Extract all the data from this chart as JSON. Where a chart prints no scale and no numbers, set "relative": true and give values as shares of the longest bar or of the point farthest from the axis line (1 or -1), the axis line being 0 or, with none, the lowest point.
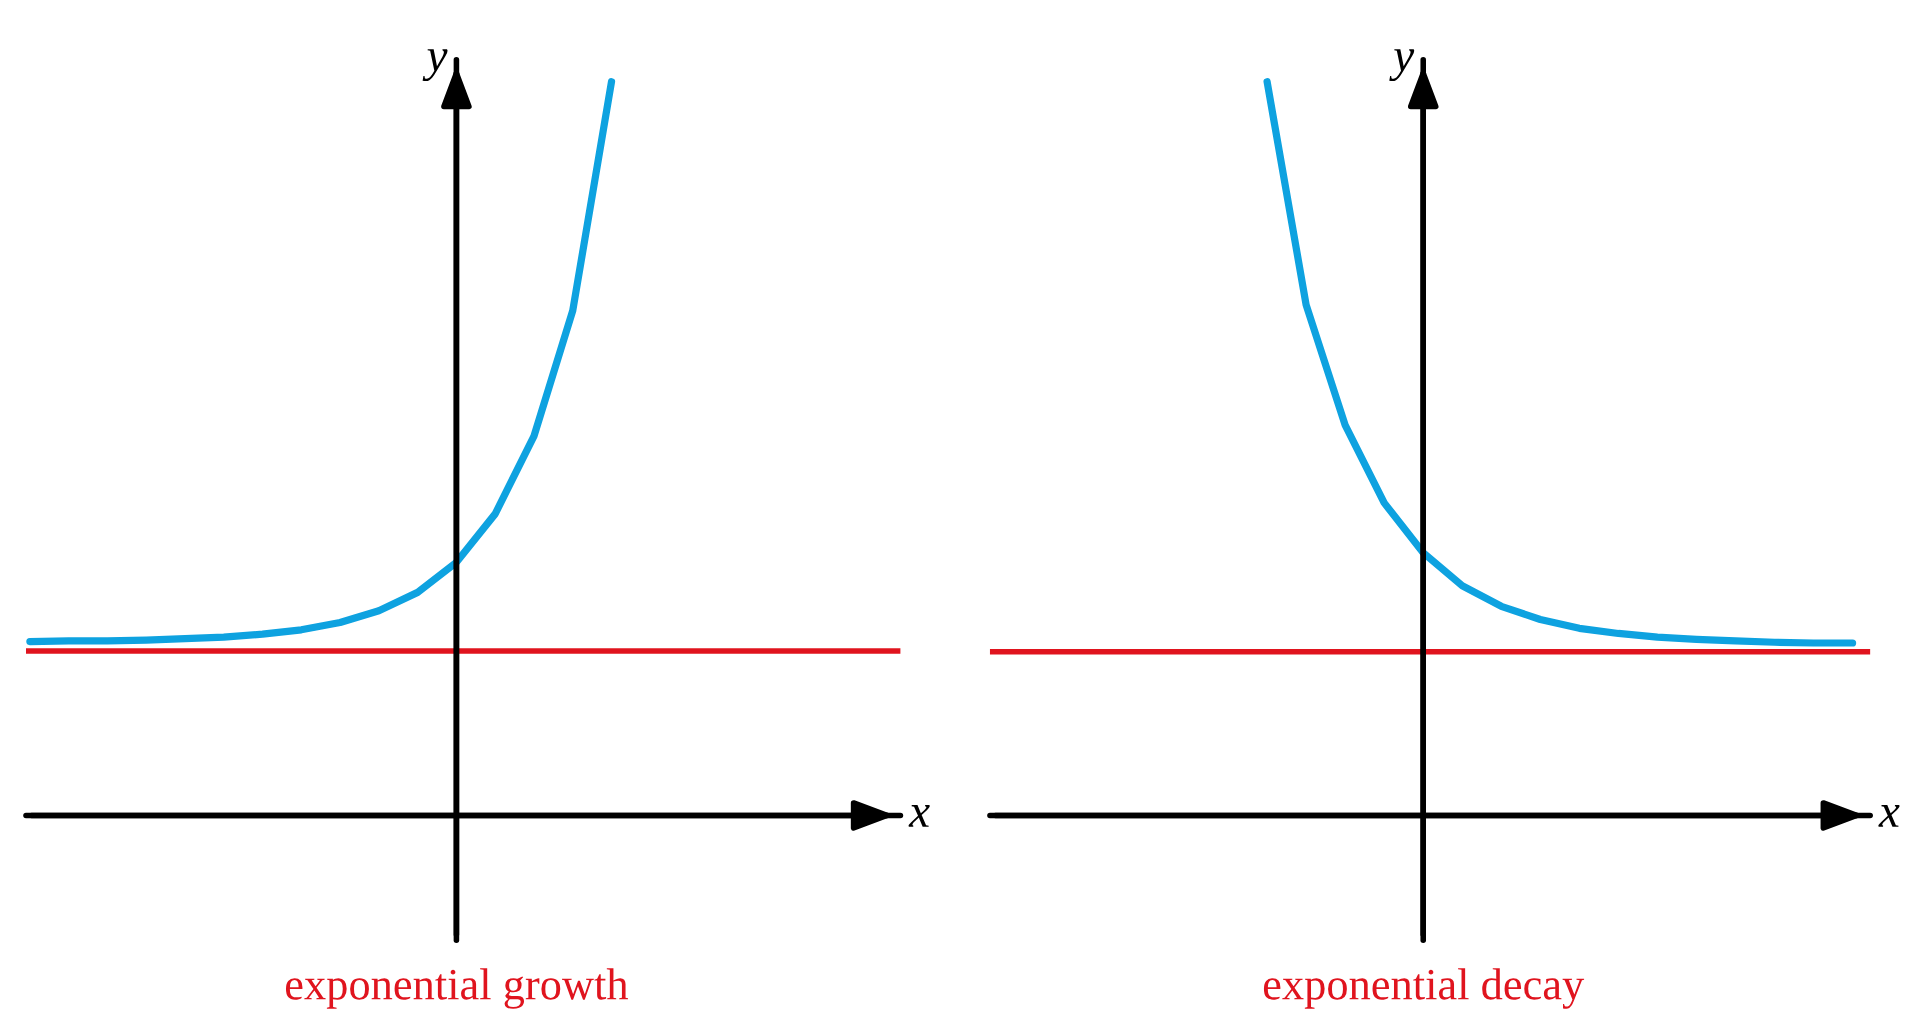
{
  "chart_data": [
    {
      "type": "line",
      "title": "exponential growth",
      "xlabel": "x",
      "ylabel": "y",
      "relative": true,
      "tick_labels": false,
      "categories": [
        null,
        null,
        null,
        null,
        null,
        null,
        null,
        null,
        null,
        null,
        null,
        null,
        null,
        null,
        null,
        null
      ],
      "series": [
        {
          "color": "#0ea2e0",
          "values": [
            0.237,
            0.238,
            0.238,
            0.239,
            0.241,
            0.243,
            0.247,
            0.253,
            0.263,
            0.279,
            0.304,
            0.345,
            0.411,
            0.517,
            0.688,
            1.0
          ]
        }
      ],
      "ref_lines": [
        {
          "axis": "y",
          "value": 0.224,
          "color": "#e0141e"
        }
      ]
    },
    {
      "type": "line",
      "title": "exponential decay",
      "xlabel": "x",
      "ylabel": "y",
      "relative": true,
      "tick_labels": false,
      "categories": [
        null,
        null,
        null,
        null,
        null,
        null,
        null,
        null,
        null,
        null,
        null,
        null,
        null,
        null,
        null,
        null
      ],
      "series": [
        {
          "color": "#0ea2e0",
          "values": [
            1.0,
            0.696,
            0.532,
            0.426,
            0.358,
            0.313,
            0.285,
            0.267,
            0.255,
            0.248,
            0.243,
            0.24,
            0.238,
            0.236,
            0.235,
            0.235
          ]
        }
      ],
      "ref_lines": [
        {
          "axis": "y",
          "value": 0.223,
          "color": "#e0141e"
        }
      ]
    }
  ]
}
